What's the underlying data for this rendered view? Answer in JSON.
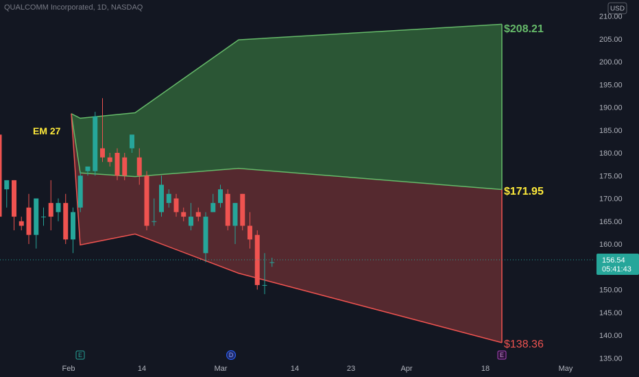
{
  "header": {
    "title": "QUALCOMM Incorporated, 1D, NASDAQ"
  },
  "currency": "USD",
  "colors": {
    "up": "#26a69a",
    "down": "#ef5350",
    "bg": "#131722",
    "band_green": "#66bb6a",
    "band_red": "#ef5350"
  },
  "price_axis": {
    "ticks": [
      "210.00",
      "205.00",
      "200.00",
      "195.00",
      "190.00",
      "185.00",
      "180.00",
      "175.00",
      "170.00",
      "165.00",
      "160.00",
      "155.00",
      "150.00",
      "145.00",
      "140.00",
      "135.00"
    ]
  },
  "time_axis": {
    "labels": [
      "Feb",
      "14",
      "Mar",
      "14",
      "23",
      "Apr",
      "18",
      "May"
    ]
  },
  "last_price": {
    "value": "156.54",
    "countdown": "05:41:43",
    "numeric": 156.54
  },
  "annotations": {
    "em_label": "EM 27",
    "upper_target": "$208.21",
    "mid_target": "$171.95",
    "lower_target": "$138.36"
  },
  "events": [
    {
      "letter": "E",
      "kind": "earnings"
    },
    {
      "letter": "D",
      "kind": "dividend"
    },
    {
      "letter": "E",
      "kind": "earnings"
    }
  ],
  "chart_data": {
    "type": "candlestick",
    "title": "QUALCOMM Incorporated, 1D, NASDAQ",
    "ylim": [
      135,
      211
    ],
    "candles": [
      {
        "o": 184,
        "h": 184,
        "c": 166,
        "l": 164
      },
      {
        "o": 172,
        "h": 174,
        "c": 174,
        "l": 168
      },
      {
        "o": 174,
        "h": 174,
        "c": 166,
        "l": 163
      },
      {
        "o": 165,
        "h": 166,
        "c": 164,
        "l": 163
      },
      {
        "o": 168,
        "h": 171,
        "c": 162,
        "l": 160
      },
      {
        "o": 162,
        "h": 170,
        "c": 170,
        "l": 159
      },
      {
        "o": 166,
        "h": 168,
        "c": 166,
        "l": 164
      },
      {
        "o": 169,
        "h": 174,
        "c": 166,
        "l": 163
      },
      {
        "o": 167,
        "h": 170,
        "c": 169,
        "l": 165
      },
      {
        "o": 169,
        "h": 171,
        "c": 161,
        "l": 160
      },
      {
        "o": 161,
        "h": 168,
        "c": 167,
        "l": 158
      },
      {
        "o": 168,
        "h": 176,
        "c": 175,
        "l": 167
      },
      {
        "o": 176,
        "h": 177,
        "c": 177,
        "l": 175
      },
      {
        "o": 176,
        "h": 189,
        "c": 188,
        "l": 175
      },
      {
        "o": 181,
        "h": 192,
        "c": 179,
        "l": 178
      },
      {
        "o": 179,
        "h": 180,
        "c": 178,
        "l": 177
      },
      {
        "o": 180,
        "h": 181,
        "c": 175,
        "l": 174
      },
      {
        "o": 179,
        "h": 180,
        "c": 175,
        "l": 174
      },
      {
        "o": 181,
        "h": 184,
        "c": 184,
        "l": 180
      },
      {
        "o": 179,
        "h": 181,
        "c": 175,
        "l": 173
      },
      {
        "o": 175,
        "h": 176,
        "c": 164,
        "l": 163
      },
      {
        "o": 165,
        "h": 170,
        "c": 165,
        "l": 164
      },
      {
        "o": 167,
        "h": 175,
        "c": 173,
        "l": 166
      },
      {
        "o": 169,
        "h": 172,
        "c": 171,
        "l": 168
      },
      {
        "o": 170,
        "h": 171,
        "c": 167,
        "l": 166
      },
      {
        "o": 167,
        "h": 168,
        "c": 166,
        "l": 165
      },
      {
        "o": 164,
        "h": 169,
        "c": 166,
        "l": 163
      },
      {
        "o": 167,
        "h": 168,
        "c": 166,
        "l": 165
      },
      {
        "o": 158,
        "h": 167,
        "c": 166,
        "l": 156
      },
      {
        "o": 167,
        "h": 171,
        "c": 169,
        "l": 167
      },
      {
        "o": 169,
        "h": 173,
        "c": 172,
        "l": 168
      },
      {
        "o": 171,
        "h": 172,
        "c": 164,
        "l": 163
      },
      {
        "o": 164,
        "h": 169,
        "c": 169,
        "l": 160
      },
      {
        "o": 171,
        "h": 171,
        "c": 164,
        "l": 163
      },
      {
        "o": 164,
        "h": 167,
        "c": 161,
        "l": 159
      },
      {
        "o": 162,
        "h": 163,
        "c": 151,
        "l": 150
      },
      {
        "o": 151,
        "h": 158,
        "c": 151,
        "l": 149
      },
      {
        "o": 156,
        "h": 157,
        "c": 156,
        "l": 155
      }
    ],
    "bands": {
      "upper": [
        188.6,
        187.6,
        188.8,
        204.8,
        208.21
      ],
      "mid": [
        188.6,
        175.6,
        174.8,
        176.6,
        171.95
      ],
      "lower": [
        188.6,
        159.8,
        162.2,
        153.6,
        138.36
      ]
    }
  }
}
